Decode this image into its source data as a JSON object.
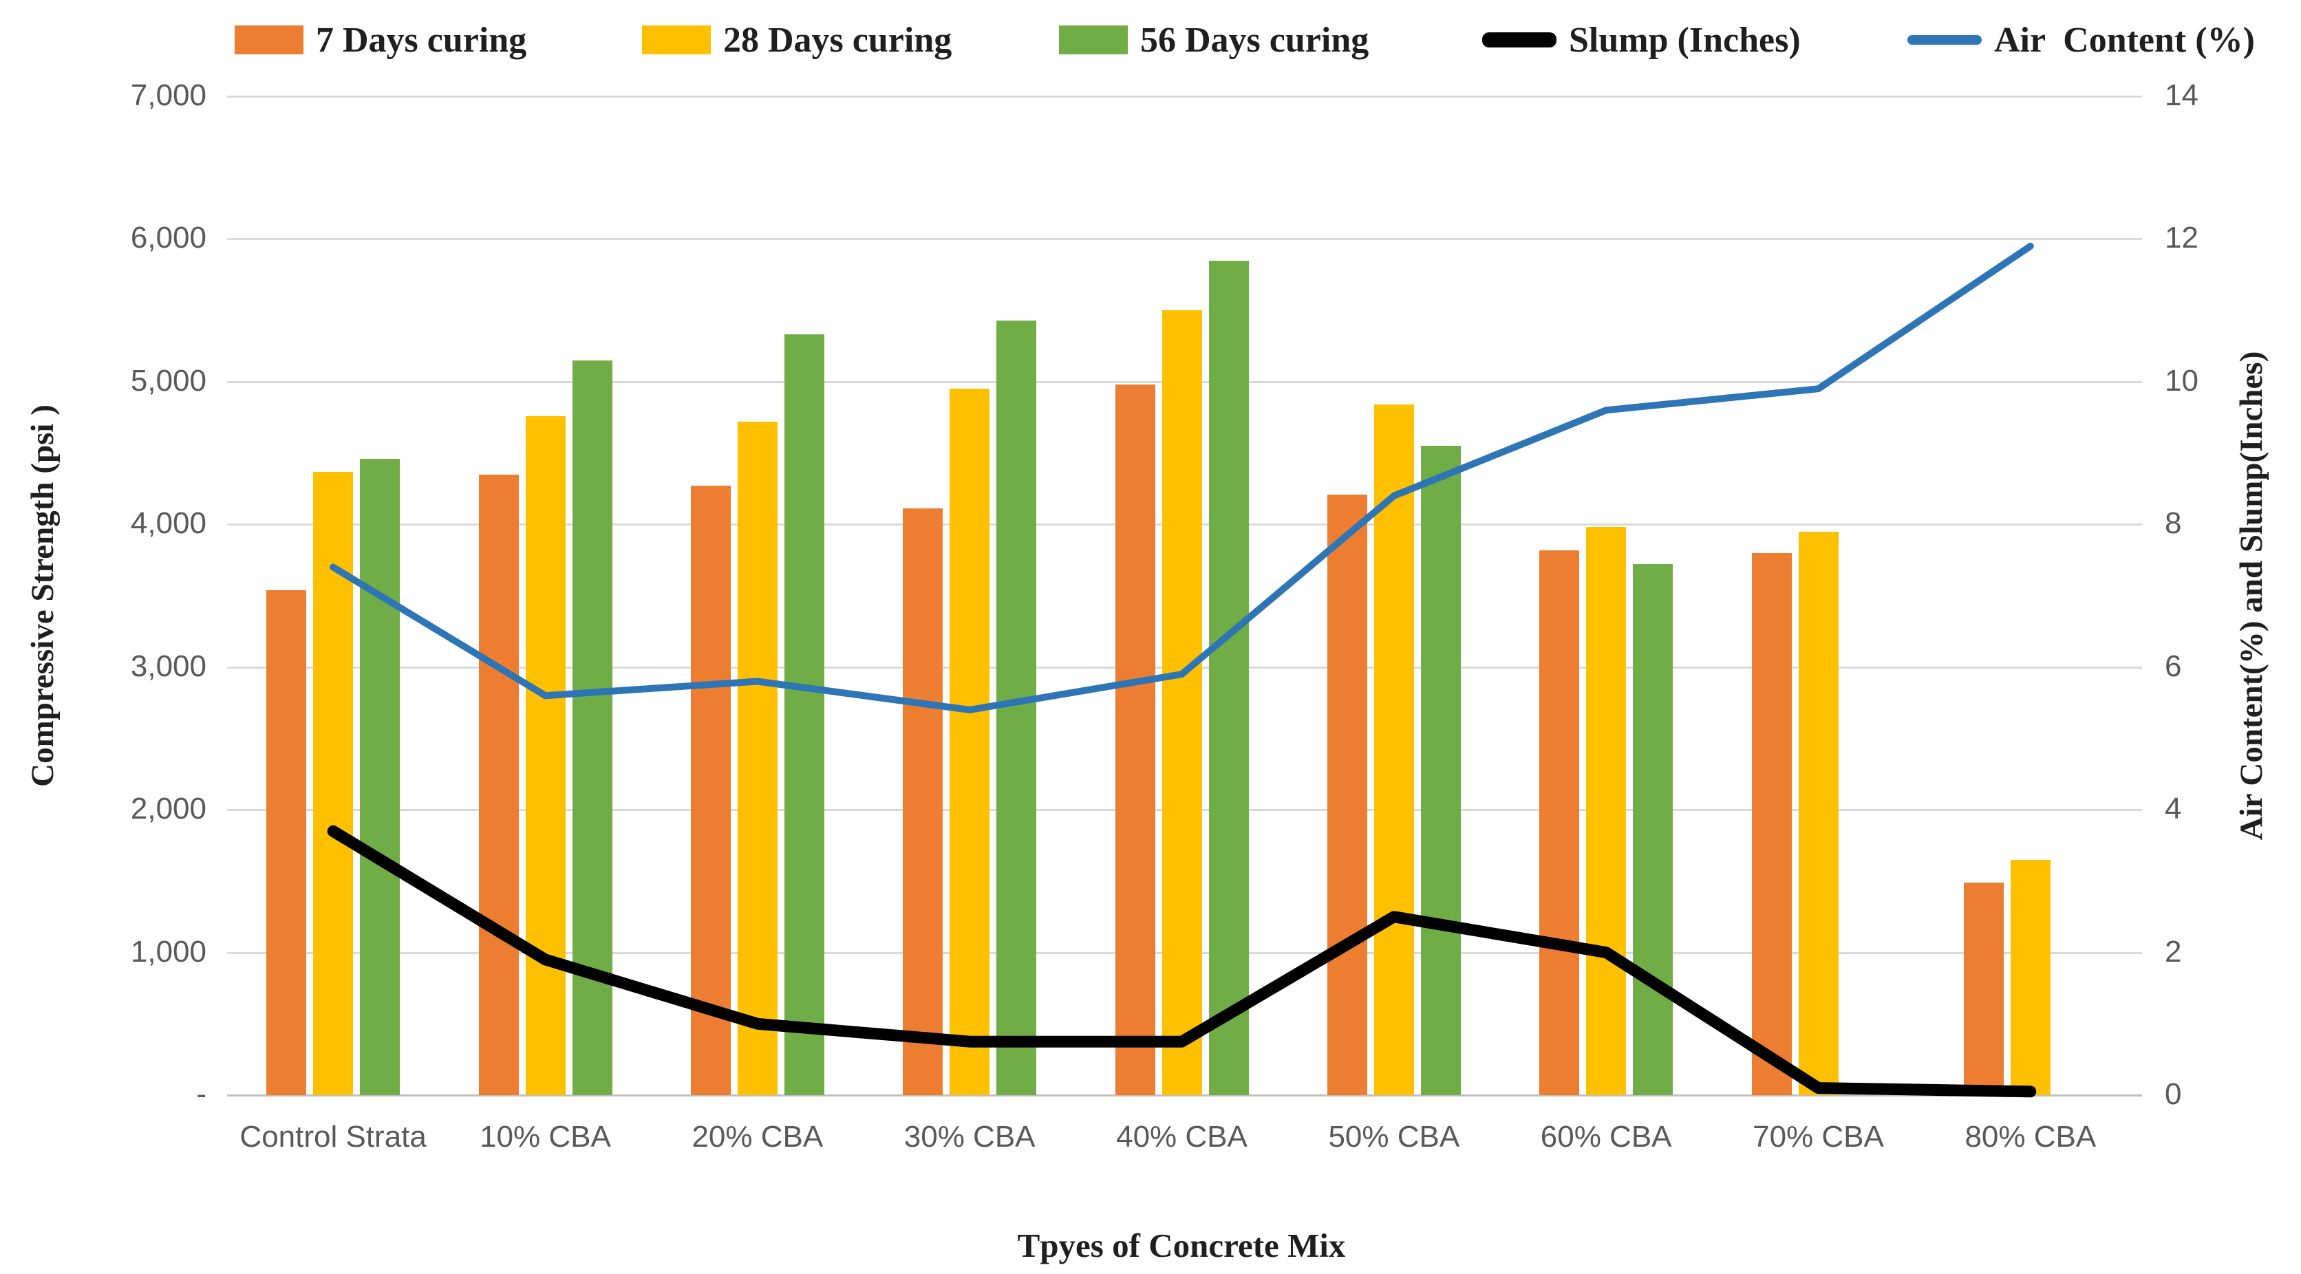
{
  "chart_data": {
    "type": "bar",
    "subtype": "combo-bar-line-dual-axis",
    "title": "",
    "categories": [
      "Control Strata",
      "10% CBA",
      "20% CBA",
      "30% CBA",
      "40% CBA",
      "50% CBA",
      "60% CBA",
      "70% CBA",
      "80% CBA"
    ],
    "bar_series": [
      {
        "name": "7 Days curing",
        "color": "#ED7D31",
        "axis": "left",
        "values": [
          3540,
          4350,
          4270,
          4110,
          4980,
          4210,
          3820,
          3800,
          1490
        ]
      },
      {
        "name": "28 Days curing",
        "color": "#FFC000",
        "axis": "left",
        "values": [
          4370,
          4760,
          4720,
          4950,
          5500,
          4840,
          3980,
          3950,
          1650
        ]
      },
      {
        "name": "56 Days curing",
        "color": "#70AD47",
        "axis": "left",
        "values": [
          4460,
          5150,
          5330,
          5430,
          5850,
          4550,
          3720,
          0,
          0
        ]
      }
    ],
    "line_series": [
      {
        "name": "Slump (Inches)",
        "color": "#000000",
        "axis": "right",
        "stroke_width": 17,
        "values": [
          3.7,
          1.9,
          1.0,
          0.75,
          0.75,
          2.5,
          2.0,
          0.1,
          0.05
        ]
      },
      {
        "name": "Air  Content (%)",
        "color": "#2E75B6",
        "axis": "right",
        "stroke_width": 10,
        "values": [
          7.4,
          5.6,
          5.8,
          5.4,
          5.9,
          8.4,
          9.6,
          9.9,
          11.9
        ]
      }
    ],
    "left_axis": {
      "label": "Compressive Strength (psi )",
      "min": 0,
      "max": 7000,
      "tick_step": 1000,
      "tick_labels_bottom_up": [
        "-",
        "1,000",
        "2,000",
        "3,000",
        "4,000",
        "5,000",
        "6,000",
        "7,000"
      ]
    },
    "right_axis": {
      "label": "Air Content(%) and Slump(Inches)",
      "min": 0,
      "max": 14,
      "tick_step": 2,
      "tick_labels_bottom_up": [
        "0",
        "2",
        "4",
        "6",
        "8",
        "10",
        "12",
        "14"
      ]
    },
    "x_axis": {
      "label": "Tpyes of Concrete Mix"
    },
    "legend_position": "top",
    "grid": true,
    "style": {
      "gridline_color": "#d9d9d9",
      "axisline_color": "#bfbfbf",
      "tick_text_color": "#595959",
      "title_text_color": "#1f1f1f",
      "background": "#ffffff"
    }
  }
}
